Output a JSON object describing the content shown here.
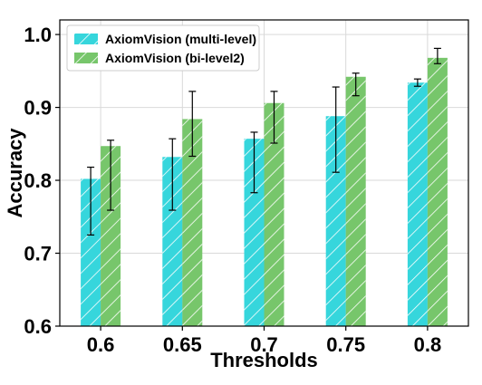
{
  "chart_data": {
    "type": "bar",
    "title": "",
    "xlabel": "Thresholds",
    "ylabel": "Accuracy",
    "categories": [
      "0.6",
      "0.65",
      "0.7",
      "0.75",
      "0.8"
    ],
    "ylim": [
      0.6,
      1.02
    ],
    "yticks": [
      "0.6",
      "0.7",
      "0.8",
      "0.9",
      "1.0"
    ],
    "grid": true,
    "legend_position": "top-left",
    "series": [
      {
        "name": "AxiomVision (multi-level)",
        "color": "#36d6dc",
        "hatch": "diagonal",
        "values": [
          0.802,
          0.832,
          0.857,
          0.888,
          0.934
        ],
        "error_low": [
          0.725,
          0.759,
          0.783,
          0.811,
          0.929
        ],
        "error_high": [
          0.818,
          0.857,
          0.866,
          0.928,
          0.939
        ]
      },
      {
        "name": "AxiomVision (bi-level2)",
        "color": "#77c66b",
        "hatch": "diagonal",
        "values": [
          0.847,
          0.884,
          0.906,
          0.942,
          0.968
        ],
        "error_low": [
          0.759,
          0.833,
          0.851,
          0.916,
          0.96
        ],
        "error_high": [
          0.855,
          0.922,
          0.922,
          0.947,
          0.981
        ]
      }
    ]
  }
}
